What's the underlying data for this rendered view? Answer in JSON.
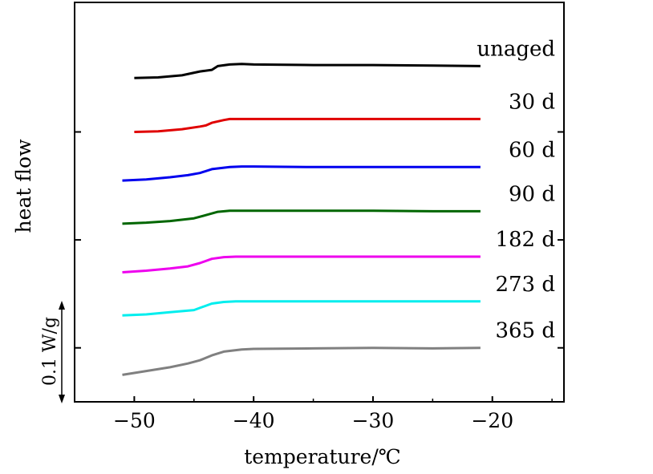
{
  "chart_data": {
    "type": "line",
    "title": "",
    "xlabel": "temperature/℃",
    "ylabel": "heat flow",
    "xlim": [
      -55,
      -14
    ],
    "x_ticks": [
      -50,
      -40,
      -30,
      -20
    ],
    "x_tick_labels": [
      "−50",
      "−40",
      "−30",
      "−20"
    ],
    "scale_bar": {
      "label": "0.1 W/g",
      "value": 0.1,
      "unit": "W/g"
    },
    "legend_placement": "right-end labels",
    "grid": false,
    "y_units": "relative heat flow, W/g (curves vertically offset)",
    "series": [
      {
        "name": "unaged",
        "color": "#000000",
        "offset": 0.6,
        "x": [
          -50,
          -48,
          -46,
          -44.5,
          -43.5,
          -43,
          -42,
          -41,
          -40,
          -35,
          -30,
          -25,
          -21
        ],
        "y": [
          0.0,
          0.001,
          0.005,
          0.012,
          0.015,
          0.022,
          0.025,
          0.026,
          0.025,
          0.024,
          0.024,
          0.023,
          0.022
        ]
      },
      {
        "name": "30 d",
        "color": "#e00000",
        "offset": 0.5,
        "x": [
          -50,
          -48,
          -46,
          -44.5,
          -44,
          -43.5,
          -42.5,
          -42,
          -41,
          -35,
          -30,
          -25,
          -21
        ],
        "y": [
          0.0,
          0.001,
          0.005,
          0.01,
          0.012,
          0.017,
          0.022,
          0.024,
          0.024,
          0.024,
          0.024,
          0.024,
          0.024
        ]
      },
      {
        "name": "60 d",
        "color": "#0000ee",
        "offset": 0.41,
        "x": [
          -51,
          -49,
          -47,
          -45.5,
          -44.5,
          -43.5,
          -42,
          -41,
          -40,
          -35,
          -30,
          -25,
          -21
        ],
        "y": [
          0.0,
          0.002,
          0.006,
          0.01,
          0.014,
          0.021,
          0.025,
          0.026,
          0.026,
          0.025,
          0.025,
          0.025,
          0.025
        ]
      },
      {
        "name": "90 d",
        "color": "#006600",
        "offset": 0.33,
        "x": [
          -51,
          -49,
          -47,
          -45,
          -44,
          -43,
          -42,
          -41,
          -35,
          -30,
          -25,
          -21
        ],
        "y": [
          0.0,
          0.002,
          0.005,
          0.01,
          0.016,
          0.022,
          0.024,
          0.024,
          0.024,
          0.024,
          0.023,
          0.023
        ]
      },
      {
        "name": "182 d",
        "color": "#ee00ee",
        "offset": 0.24,
        "x": [
          -51,
          -49,
          -47,
          -45.5,
          -44.5,
          -43.5,
          -42.5,
          -41.5,
          -40,
          -35,
          -30,
          -25,
          -21
        ],
        "y": [
          0.0,
          0.003,
          0.007,
          0.011,
          0.017,
          0.025,
          0.028,
          0.029,
          0.029,
          0.029,
          0.029,
          0.029,
          0.029
        ]
      },
      {
        "name": "273 d",
        "color": "#00eeee",
        "offset": 0.16,
        "x": [
          -51,
          -49,
          -47,
          -45,
          -44.5,
          -43.5,
          -42.5,
          -41.5,
          -40,
          -35,
          -30,
          -25,
          -21
        ],
        "y": [
          0.0,
          0.002,
          0.006,
          0.01,
          0.014,
          0.022,
          0.025,
          0.026,
          0.026,
          0.026,
          0.026,
          0.026,
          0.026
        ]
      },
      {
        "name": "365 d",
        "color": "#808080",
        "offset": 0.05,
        "x": [
          -51,
          -49,
          -47,
          -45.5,
          -44.5,
          -43.5,
          -42.5,
          -41,
          -40,
          -35,
          -30,
          -25,
          -21
        ],
        "y": [
          0.0,
          0.007,
          0.014,
          0.021,
          0.027,
          0.036,
          0.043,
          0.047,
          0.048,
          0.049,
          0.05,
          0.049,
          0.05
        ]
      }
    ]
  }
}
